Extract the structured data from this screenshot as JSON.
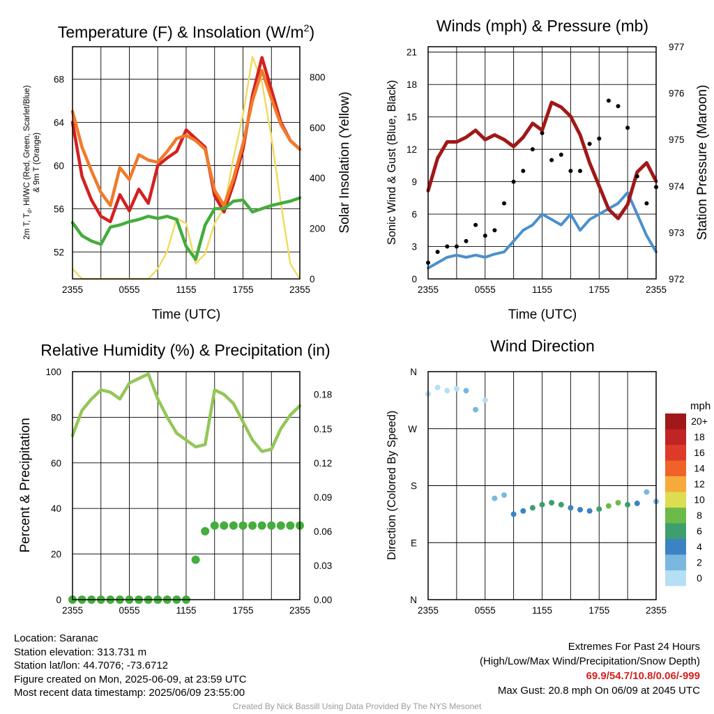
{
  "chart_data": [
    {
      "type": "line",
      "title": "Temperature (F) & Insolation (W/m²)",
      "title_main": "Temperature (F) & Insolation (W/m",
      "title_sup": "2",
      "title_end": ")",
      "xlabel": "Time (UTC)",
      "ylabel_line1": "2m T, T",
      "ylabel_sub": "d",
      "ylabel_line1_end": ", HI/WC (Red, Green, Scarlet/Blue)",
      "ylabel_line2": "& 9m T (Orange)",
      "ylabel_right": "Solar Insolation (Yellow)",
      "x_ticks": [
        "2355",
        "0555",
        "1155",
        "1755",
        "2355"
      ],
      "y_ticks": [
        52,
        56,
        60,
        64,
        68
      ],
      "y_right_ticks": [
        0,
        200,
        400,
        600,
        800
      ],
      "ylim": [
        49.5,
        71
      ],
      "ylim_right": [
        0,
        920
      ],
      "x_hours": [
        0,
        1,
        2,
        3,
        4,
        5,
        6,
        7,
        8,
        9,
        10,
        11,
        12,
        13,
        14,
        15,
        16,
        17,
        18,
        19,
        20,
        21,
        22,
        23,
        24
      ],
      "series": [
        {
          "name": "2m T",
          "color": "#d42020",
          "axis": "left",
          "values": [
            64.0,
            59.0,
            56.8,
            55.3,
            54.8,
            57.3,
            55.8,
            57.8,
            56.5,
            60.0,
            60.7,
            61.3,
            63.3,
            62.5,
            61.7,
            57.2,
            55.7,
            58.3,
            61.5,
            66.5,
            70.0,
            67.0,
            64.0,
            62.3,
            61.5
          ]
        },
        {
          "name": "9m T",
          "color": "#f07a2a",
          "axis": "left",
          "values": [
            65.0,
            61.7,
            59.5,
            57.5,
            56.3,
            59.8,
            58.7,
            61.0,
            60.5,
            60.3,
            61.3,
            62.5,
            62.8,
            62.3,
            61.5,
            57.7,
            56.3,
            58.8,
            62.0,
            66.0,
            68.8,
            66.2,
            63.8,
            62.3,
            61.5
          ]
        },
        {
          "name": "Td",
          "color": "#44ad3c",
          "axis": "left",
          "values": [
            54.7,
            53.5,
            53.0,
            52.7,
            54.3,
            54.5,
            54.8,
            55.0,
            55.3,
            55.1,
            55.3,
            55.0,
            52.5,
            51.3,
            54.5,
            56.0,
            56.0,
            56.7,
            56.8,
            55.7,
            56.0,
            56.3,
            56.5,
            56.7,
            57.0
          ]
        },
        {
          "name": "Solar Insolation",
          "color": "#f0dc60",
          "axis": "right",
          "values": [
            40,
            0,
            0,
            0,
            0,
            0,
            0,
            0,
            0,
            40,
            110,
            240,
            220,
            60,
            100,
            220,
            280,
            480,
            650,
            880,
            780,
            560,
            300,
            60,
            0
          ]
        }
      ]
    },
    {
      "type": "line",
      "title": "Winds (mph) & Pressure (mb)",
      "xlabel": "Time (UTC)",
      "ylabel": "Sonic Wind & Gust (Blue, Black)",
      "ylabel_right": "Station Pressure (Maroon)",
      "x_ticks": [
        "2355",
        "0555",
        "1155",
        "1755",
        "2355"
      ],
      "y_ticks": [
        0,
        3,
        6,
        9,
        12,
        15,
        18,
        21
      ],
      "y_right_ticks": [
        972,
        973,
        974,
        975,
        976,
        977
      ],
      "ylim": [
        0,
        21.5
      ],
      "ylim_right": [
        972,
        977
      ],
      "x_hours": [
        0,
        1,
        2,
        3,
        4,
        5,
        6,
        7,
        8,
        9,
        10,
        11,
        12,
        13,
        14,
        15,
        16,
        17,
        18,
        19,
        20,
        21,
        22,
        23,
        24
      ],
      "series": [
        {
          "name": "Sonic Wind",
          "color": "#4a90cc",
          "axis": "left",
          "values": [
            1.0,
            1.5,
            2.0,
            2.2,
            2.0,
            2.2,
            2.0,
            2.3,
            2.5,
            3.5,
            4.5,
            5.0,
            6.0,
            5.5,
            5.0,
            6.0,
            4.5,
            5.5,
            6.0,
            6.5,
            7.0,
            8.0,
            6.0,
            4.0,
            2.5
          ]
        },
        {
          "name": "Station Pressure",
          "color": "#a01818",
          "axis": "right",
          "values": [
            973.9,
            974.6,
            974.95,
            974.95,
            975.05,
            975.2,
            975.0,
            975.1,
            975.0,
            974.85,
            975.05,
            975.35,
            975.2,
            975.8,
            975.7,
            975.5,
            975.1,
            974.5,
            974.0,
            973.5,
            973.3,
            973.6,
            974.3,
            974.5,
            974.1
          ]
        },
        {
          "name": "Gust",
          "color": "#000000",
          "axis": "left",
          "style": "points",
          "values": [
            1.5,
            2.5,
            3.0,
            3.0,
            3.5,
            5.0,
            4.0,
            4.5,
            7.0,
            9.0,
            10.0,
            12.0,
            13.5,
            11.0,
            11.5,
            10.0,
            10.0,
            12.5,
            13.0,
            16.5,
            16.0,
            14.0,
            9.5,
            7.0,
            8.5
          ]
        }
      ]
    },
    {
      "type": "line",
      "title": "Relative Humidity (%) & Precipitation (in)",
      "xlabel": "",
      "ylabel": "Percent & Precipitation",
      "x_ticks": [
        "2355",
        "0555",
        "1155",
        "1755",
        "2355"
      ],
      "y_ticks": [
        0,
        20,
        40,
        60,
        80,
        100
      ],
      "y_right_ticks": [
        "0.00",
        "0.03",
        "0.06",
        "0.09",
        "0.12",
        "0.15",
        "0.18"
      ],
      "ylim": [
        0,
        100
      ],
      "ylim_right": [
        0,
        0.2
      ],
      "x_hours": [
        0,
        1,
        2,
        3,
        4,
        5,
        6,
        7,
        8,
        9,
        10,
        11,
        12,
        13,
        14,
        15,
        16,
        17,
        18,
        19,
        20,
        21,
        22,
        23,
        24
      ],
      "series": [
        {
          "name": "Relative Humidity",
          "color": "#94c658",
          "axis": "left",
          "values": [
            72,
            83,
            88,
            92,
            91,
            88,
            95,
            97,
            99,
            88,
            80,
            73,
            70,
            67,
            68,
            92,
            90,
            86,
            78,
            70,
            65,
            66,
            75,
            81,
            85
          ]
        },
        {
          "name": "Precipitation",
          "color": "#44ad3c",
          "axis": "right",
          "style": "points",
          "values": [
            0,
            0,
            0,
            0,
            0,
            0,
            0,
            0,
            0,
            0,
            0,
            0,
            0,
            0.035,
            0.06,
            0.065,
            0.065,
            0.065,
            0.065,
            0.065,
            0.065,
            0.065,
            0.065,
            0.065,
            0.065
          ]
        }
      ]
    },
    {
      "type": "scatter",
      "title": "Wind Direction",
      "ylabel": "Direction (Colored By Speed)",
      "x_ticks": [
        "2355",
        "0555",
        "1155",
        "1755",
        "2355"
      ],
      "y_ticks": [
        "N",
        "E",
        "S",
        "W",
        "N"
      ],
      "ylim": [
        0,
        360
      ],
      "colorbar_label": "mph",
      "colorbar_ticks": [
        "0",
        "2",
        "4",
        "6",
        "8",
        "10",
        "12",
        "14",
        "16",
        "18",
        "20+"
      ],
      "colorbar_colors": [
        "#b5dff5",
        "#7ab8e0",
        "#3c83c4",
        "#3f9e6e",
        "#6cba4a",
        "#dedc50",
        "#f6aa3c",
        "#ef6228",
        "#de3a2a",
        "#c02424",
        "#a01818"
      ],
      "x_hours": [
        0,
        1,
        2,
        3,
        4,
        5,
        6,
        7,
        8,
        9,
        10,
        11,
        12,
        13,
        14,
        15,
        16,
        17,
        18,
        19,
        20,
        21,
        22,
        23,
        24
      ],
      "series": [
        {
          "name": "Wind Direction",
          "color": "#4a90cc",
          "values": [
            325,
            335,
            330,
            333,
            330,
            300,
            315,
            160,
            165,
            135,
            140,
            145,
            150,
            153,
            150,
            145,
            142,
            140,
            143,
            148,
            153,
            150,
            152,
            170,
            155
          ],
          "speeds": [
            1.5,
            1.5,
            1.5,
            1.5,
            2.0,
            2.0,
            1.5,
            2.0,
            3.5,
            4.0,
            5.0,
            6.0,
            7.0,
            6.5,
            6.0,
            5.0,
            4.0,
            5.0,
            7.0,
            8.0,
            8.0,
            7.0,
            5.0,
            3.5,
            2.5
          ]
        }
      ]
    }
  ],
  "footer": {
    "location": "Location: Saranac",
    "elevation": "Station elevation: 313.731 m",
    "latlon": "Station lat/lon: 44.7076; -73.6712",
    "created": "Figure created on Mon, 2025-06-09, at 23:59 UTC",
    "recent": "Most recent data timestamp: 2025/06/09 23:55:00",
    "extremes_title": "Extremes For Past 24 Hours",
    "extremes_desc": "(High/Low/Max Wind/Precipitation/Snow Depth)",
    "extremes_values": "69.9/54.7/10.8/0.06/-999",
    "max_gust": "Max Gust: 20.8 mph On 06/09 at 2045 UTC",
    "credit": "Created By Nick Bassill Using Data Provided By The NYS Mesonet"
  }
}
